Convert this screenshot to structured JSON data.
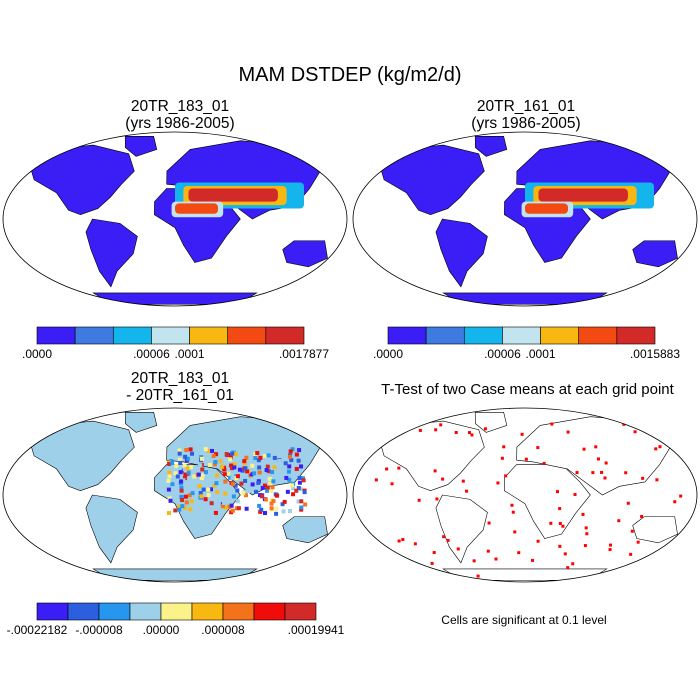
{
  "main_title": "MAM DSTDEP (kg/m2/d)",
  "panels": [
    {
      "title1": "20TR_183_01",
      "title2": "(yrs 1986-2005)"
    },
    {
      "title1": "20TR_161_01",
      "title2": "(yrs 1986-2005)"
    },
    {
      "title1": "20TR_183_01",
      "title2": "- 20TR_161_01"
    },
    {
      "title1": "T-Test of two Case means at each grid point",
      "title2": ""
    }
  ],
  "colorbars": {
    "mean1": {
      "colors": [
        "#3a1ef5",
        "#3e7be0",
        "#14b4ec",
        "#c2e4ef",
        "#f9b811",
        "#f24a12",
        "#d12a28"
      ],
      "labels": [
        ".0000",
        ".00006",
        ".0001",
        ".0017877"
      ],
      "label_edges": [
        0,
        3,
        4,
        7
      ]
    },
    "mean2": {
      "colors": [
        "#3a1ef5",
        "#3e7be0",
        "#14b4ec",
        "#c2e4ef",
        "#f9b811",
        "#f24a12",
        "#d12a28"
      ],
      "labels": [
        ".0000",
        ".00006",
        ".0001",
        ".0015883"
      ],
      "label_edges": [
        0,
        3,
        4,
        7
      ]
    },
    "diff": {
      "colors": [
        "#3a1ef5",
        "#2b5fe0",
        "#2696ee",
        "#9fd0ea",
        "#fbf38a",
        "#f9b811",
        "#f4731a",
        "#f10c0c",
        "#d12a28"
      ],
      "labels": [
        "-.00022182",
        "-.000008",
        ".00000",
        ".000008",
        ".00019941"
      ],
      "label_edges": [
        0,
        2,
        4,
        6,
        9
      ]
    }
  },
  "ttest_note": "Cells are significant at 0.1 level"
}
